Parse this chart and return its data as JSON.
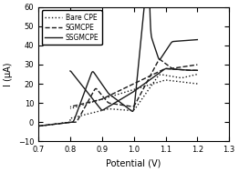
{
  "title": "",
  "xlabel": "Potential (V)",
  "ylabel": "I (μA)",
  "xlim": [
    0.7,
    1.3
  ],
  "ylim": [
    -10,
    60
  ],
  "xticks": [
    0.7,
    0.8,
    0.9,
    1.0,
    1.1,
    1.2,
    1.3
  ],
  "yticks": [
    -10,
    0,
    10,
    20,
    30,
    40,
    50,
    60
  ],
  "legend_labels": [
    "Bare CPE",
    "SGMCPE",
    "SSGMCPE"
  ],
  "background_color": "#ffffff",
  "line_color": "#1a1a1a"
}
